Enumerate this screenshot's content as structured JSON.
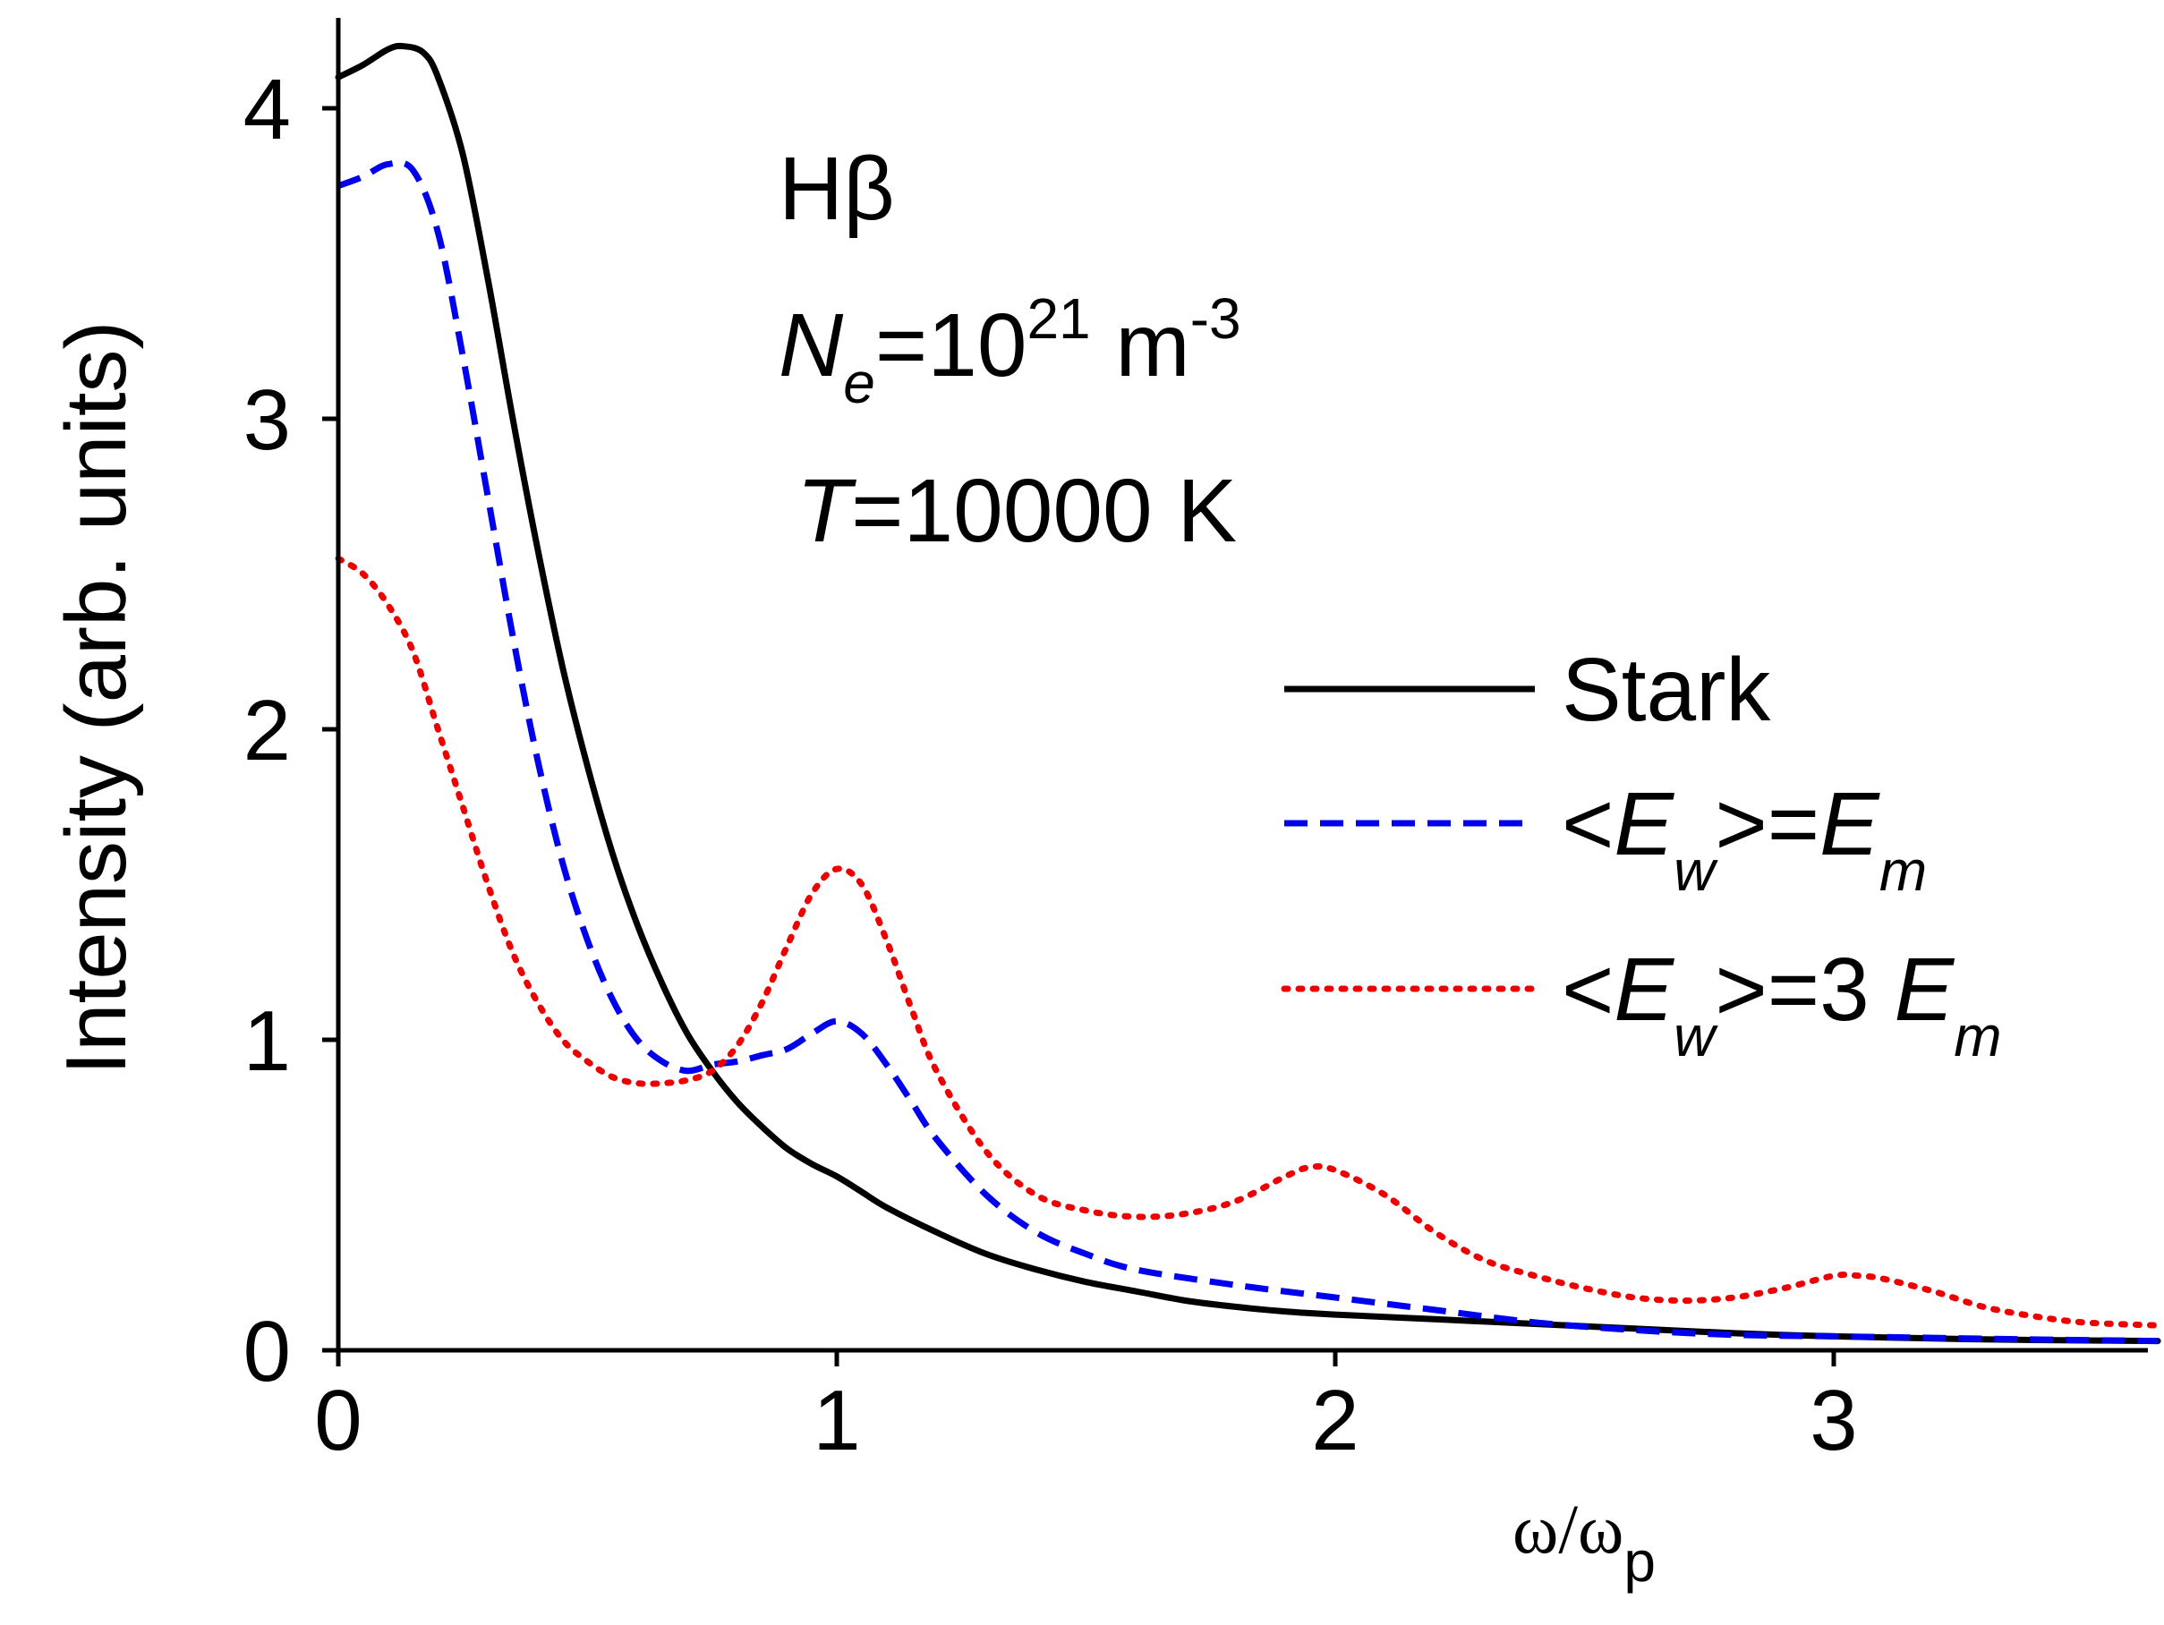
{
  "chart_data": {
    "type": "line",
    "title": "",
    "xlabel": {
      "main": "ω/ω",
      "sub": "p"
    },
    "ylabel": "Intensity (arb. units)",
    "xlim": [
      0,
      3.65
    ],
    "ylim": [
      0,
      4.3
    ],
    "xticks": [
      0,
      1,
      2,
      3
    ],
    "yticks": [
      0,
      1,
      2,
      3,
      4
    ],
    "x_tick_labels": [
      "0",
      "1",
      "2",
      "3"
    ],
    "y_tick_labels": [
      "0",
      "1",
      "2",
      "3",
      "4"
    ],
    "annotations": {
      "line1": "Hβ",
      "line2": {
        "a": "N",
        "b": "e",
        "c": "=10",
        "d": "21",
        "e": " m",
        "f": "-3"
      },
      "line3": {
        "a": "T",
        "b": "=10000 K"
      }
    },
    "legend": {
      "position": "center-right",
      "entries": [
        {
          "name": "Stark"
        },
        {
          "a": "<",
          "b": "E",
          "c": "w",
          "d": ">=",
          "e": "E",
          "f": "m"
        },
        {
          "a": "<",
          "b": "E",
          "c": "w",
          "d": ">=3 ",
          "e": "E",
          "f": "m"
        }
      ]
    },
    "series": [
      {
        "name": "Stark",
        "color": "#000000",
        "style": "solid",
        "x": [
          0,
          0.05,
          0.1,
          0.13,
          0.17,
          0.2,
          0.25,
          0.3,
          0.35,
          0.4,
          0.45,
          0.5,
          0.55,
          0.6,
          0.65,
          0.7,
          0.75,
          0.8,
          0.85,
          0.9,
          0.95,
          1.0,
          1.05,
          1.1,
          1.2,
          1.3,
          1.4,
          1.5,
          1.6,
          1.7,
          1.8,
          1.9,
          2.0,
          2.2,
          2.4,
          2.6,
          2.8,
          3.0,
          3.2,
          3.4,
          3.65
        ],
        "y": [
          4.1,
          4.14,
          4.19,
          4.2,
          4.18,
          4.1,
          3.85,
          3.45,
          3.0,
          2.58,
          2.2,
          1.88,
          1.6,
          1.37,
          1.18,
          1.02,
          0.9,
          0.8,
          0.72,
          0.65,
          0.6,
          0.56,
          0.51,
          0.46,
          0.38,
          0.31,
          0.26,
          0.22,
          0.19,
          0.16,
          0.14,
          0.125,
          0.115,
          0.1,
          0.085,
          0.07,
          0.055,
          0.045,
          0.038,
          0.033,
          0.03
        ]
      },
      {
        "name": "<Ew>=Em",
        "color": "#0000ee",
        "style": "dashed",
        "x": [
          0,
          0.05,
          0.1,
          0.15,
          0.2,
          0.25,
          0.3,
          0.35,
          0.4,
          0.45,
          0.5,
          0.55,
          0.6,
          0.65,
          0.7,
          0.75,
          0.8,
          0.85,
          0.9,
          0.95,
          1.0,
          1.05,
          1.1,
          1.15,
          1.2,
          1.3,
          1.4,
          1.5,
          1.6,
          1.8,
          2.0,
          2.2,
          2.4,
          2.6,
          2.8,
          3.0,
          3.2,
          3.4,
          3.65
        ],
        "y": [
          3.75,
          3.78,
          3.82,
          3.8,
          3.6,
          3.2,
          2.75,
          2.3,
          1.9,
          1.57,
          1.32,
          1.13,
          1.0,
          0.93,
          0.9,
          0.92,
          0.93,
          0.95,
          0.97,
          1.02,
          1.06,
          1.02,
          0.92,
          0.8,
          0.68,
          0.5,
          0.38,
          0.31,
          0.26,
          0.21,
          0.17,
          0.13,
          0.09,
          0.065,
          0.05,
          0.045,
          0.04,
          0.035,
          0.03
        ]
      },
      {
        "name": "<Ew>=3 Em",
        "color": "#ee0000",
        "style": "dotted",
        "x": [
          0,
          0.05,
          0.1,
          0.15,
          0.2,
          0.25,
          0.3,
          0.35,
          0.4,
          0.45,
          0.5,
          0.55,
          0.6,
          0.65,
          0.7,
          0.75,
          0.8,
          0.85,
          0.9,
          0.95,
          1.0,
          1.05,
          1.1,
          1.15,
          1.2,
          1.3,
          1.4,
          1.5,
          1.6,
          1.7,
          1.8,
          1.9,
          1.95,
          2.0,
          2.1,
          2.2,
          2.3,
          2.4,
          2.5,
          2.6,
          2.7,
          2.8,
          2.9,
          3.0,
          3.05,
          3.1,
          3.2,
          3.3,
          3.4,
          3.5,
          3.65
        ],
        "y": [
          2.55,
          2.5,
          2.4,
          2.25,
          2.0,
          1.75,
          1.5,
          1.28,
          1.12,
          1.0,
          0.93,
          0.88,
          0.86,
          0.86,
          0.87,
          0.9,
          0.98,
          1.12,
          1.3,
          1.47,
          1.55,
          1.5,
          1.32,
          1.1,
          0.9,
          0.64,
          0.5,
          0.45,
          0.43,
          0.44,
          0.48,
          0.56,
          0.59,
          0.58,
          0.5,
          0.38,
          0.29,
          0.24,
          0.2,
          0.17,
          0.16,
          0.17,
          0.2,
          0.24,
          0.24,
          0.23,
          0.19,
          0.14,
          0.11,
          0.09,
          0.08
        ]
      }
    ]
  }
}
